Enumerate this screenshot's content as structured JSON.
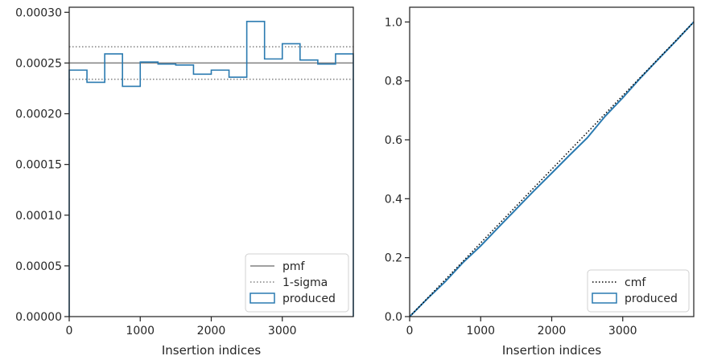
{
  "chart_data": [
    {
      "type": "line",
      "subtype": "step-histogram",
      "title": "",
      "xlabel": "Insertion indices",
      "ylabel": "",
      "xlim": [
        0,
        4000
      ],
      "ylim": [
        0,
        0.000305
      ],
      "xticks": [
        0,
        1000,
        2000,
        3000
      ],
      "xtick_labels": [
        "0",
        "1000",
        "2000",
        "3000"
      ],
      "yticks": [
        0,
        5e-05,
        0.0001,
        0.00015,
        0.0002,
        0.00025,
        0.0003
      ],
      "ytick_labels": [
        "0.00000",
        "0.00005",
        "0.00010",
        "0.00015",
        "0.00020",
        "0.00025",
        "0.00030"
      ],
      "grid": false,
      "legend_position": "lower-right",
      "bin_edges": [
        0,
        250,
        500,
        750,
        1000,
        1250,
        1500,
        1750,
        2000,
        2250,
        2500,
        2750,
        3000,
        3250,
        3500,
        3750,
        4000
      ],
      "series": [
        {
          "name": "pmf",
          "style": "solid",
          "color": "#808080",
          "value": 0.00025
        },
        {
          "name": "1-sigma",
          "style": "dotted",
          "color": "#808080",
          "values": [
            0.000234,
            0.000266
          ]
        },
        {
          "name": "produced",
          "style": "step",
          "color": "#2a7ab0",
          "values": [
            0.000243,
            0.000231,
            0.000259,
            0.000227,
            0.000251,
            0.000249,
            0.000248,
            0.000239,
            0.000243,
            0.000236,
            0.000291,
            0.000254,
            0.000269,
            0.000253,
            0.000249,
            0.000259
          ]
        }
      ]
    },
    {
      "type": "line",
      "title": "",
      "xlabel": "Insertion indices",
      "ylabel": "",
      "xlim": [
        0,
        4000
      ],
      "ylim": [
        0,
        1.05
      ],
      "xticks": [
        0,
        1000,
        2000,
        3000
      ],
      "xtick_labels": [
        "0",
        "1000",
        "2000",
        "3000"
      ],
      "yticks": [
        0,
        0.2,
        0.4,
        0.6,
        0.8,
        1.0
      ],
      "ytick_labels": [
        "0.0",
        "0.2",
        "0.4",
        "0.6",
        "0.8",
        "1.0"
      ],
      "grid": false,
      "legend_position": "lower-right",
      "series": [
        {
          "name": "cmf",
          "style": "dotted",
          "color": "#000000",
          "x": [
            0,
            4000
          ],
          "y": [
            0,
            1
          ]
        },
        {
          "name": "produced",
          "style": "solid",
          "color": "#2a7ab0",
          "x": [
            0,
            250,
            500,
            750,
            1000,
            1250,
            1500,
            1750,
            2000,
            2250,
            2500,
            2750,
            3000,
            3250,
            3500,
            3750,
            4000
          ],
          "y": [
            0,
            0.0608,
            0.1185,
            0.1833,
            0.24,
            0.3028,
            0.365,
            0.427,
            0.4868,
            0.5475,
            0.6065,
            0.6793,
            0.7428,
            0.81,
            0.8733,
            0.9355,
            1.0
          ]
        }
      ]
    }
  ]
}
